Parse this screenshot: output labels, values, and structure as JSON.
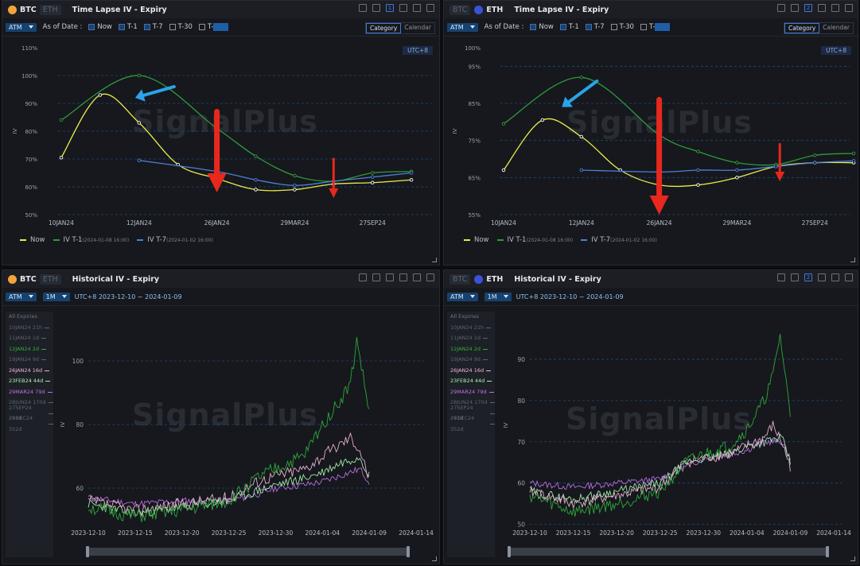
{
  "common": {
    "ticker_btc": "BTC",
    "ticker_eth": "ETH",
    "atm": "ATM",
    "as_of_date": "As of Date :",
    "now": "Now",
    "t1": "T-1",
    "t7": "T-7",
    "t30": "T-30",
    "tprefix": "T-",
    "category": "Category",
    "calendar": "Calendar",
    "utc": "UTC+8",
    "watermark": "SignalPlus",
    "period": "1M",
    "date_range": "UTC+8 2023-12-10 ~ 2024-01-09",
    "legend_now": "Now",
    "legend_t1": "IV T-1",
    "legend_t1_date": "(2024-01-08 16:00)",
    "legend_t7": "IV T-7",
    "legend_t7_date": "(2024-01-02 16:00)",
    "colors": {
      "now": "#e8ec4a",
      "t1": "#2f9a3a",
      "t7": "#4f7fd8",
      "arrow_red": "#e8281c",
      "arrow_blue": "#2aa3ea"
    }
  },
  "panels": {
    "tl_btc": {
      "title": "Time Lapse IV - Expiry",
      "page": "1"
    },
    "tl_eth": {
      "title": "Time Lapse IV - Expiry",
      "page": "2"
    },
    "hi_btc": {
      "title": "Historical IV - Expiry"
    },
    "hi_eth": {
      "title": "Historical IV - Expiry",
      "page": "2"
    }
  },
  "expiries_btc": [
    {
      "label": "All Expiries",
      "color": "#6e7480"
    },
    {
      "label": "10JAN24 21h",
      "color": "#5d636f"
    },
    {
      "label": "11JAN24 1d",
      "color": "#5d636f"
    },
    {
      "label": "12JAN24 2d",
      "color": "#2fae3c"
    },
    {
      "label": "19JAN24 9d",
      "color": "#5d636f"
    },
    {
      "label": "26JAN24 16d",
      "color": "#f0b6d8"
    },
    {
      "label": "23FEB24 44d",
      "color": "#a8f0b0"
    },
    {
      "label": "29MAR24 79d",
      "color": "#c070e8"
    },
    {
      "label": "28JUN24 170d",
      "color": "#5d636f"
    },
    {
      "label": "27SEP24 261d",
      "color": "#5d636f"
    },
    {
      "label": "27DEC24 352d",
      "color": "#5d636f"
    }
  ],
  "expiries_eth": [
    {
      "label": "All Expiries",
      "color": "#6e7480"
    },
    {
      "label": "10JAN24 21h",
      "color": "#5d636f"
    },
    {
      "label": "11JAN24 1d",
      "color": "#5d636f"
    },
    {
      "label": "12JAN24 2d",
      "color": "#2fae3c"
    },
    {
      "label": "19JAN24 9d",
      "color": "#5d636f"
    },
    {
      "label": "26JAN24 16d",
      "color": "#f0b6d8"
    },
    {
      "label": "23FEB24 44d",
      "color": "#a8f0b0"
    },
    {
      "label": "29MAR24 79d",
      "color": "#c070e8"
    },
    {
      "label": "28JUN24 170d",
      "color": "#5d636f"
    },
    {
      "label": "27SEP24 261d",
      "color": "#5d636f"
    },
    {
      "label": "27DEC24 352d",
      "color": "#5d636f"
    }
  ],
  "chart_data": [
    {
      "id": "tl_btc",
      "type": "line",
      "ylabel": "IV",
      "x_tick_labels": [
        "10JAN24",
        "12JAN24",
        "26JAN24",
        "29MAR24",
        "27SEP24"
      ],
      "y_ticks": [
        "110%",
        "100%",
        "90%",
        "80%",
        "70%",
        "60%",
        "50%"
      ],
      "ylim": [
        50,
        110
      ],
      "series": [
        {
          "name": "Now",
          "x": [
            0,
            1,
            2,
            3,
            4,
            5,
            6,
            7,
            8,
            9
          ],
          "values": [
            70.5,
            93,
            83,
            68,
            63,
            59,
            59,
            61,
            61.5,
            62.5
          ]
        },
        {
          "name": "IV T-1",
          "x": [
            0,
            2,
            4,
            5,
            6,
            7,
            8,
            9
          ],
          "values": [
            84,
            100,
            81,
            71,
            64,
            62,
            65,
            65.5
          ]
        },
        {
          "name": "IV T-7",
          "x": [
            2,
            4,
            5,
            6,
            7,
            8,
            9
          ],
          "values": [
            69.5,
            65.5,
            62.5,
            60.5,
            62,
            63.5,
            65
          ]
        }
      ],
      "arrows": [
        {
          "color": "red",
          "from": [
            4.0,
            87
          ],
          "to": [
            4.0,
            58
          ]
        },
        {
          "color": "red",
          "from": [
            7.0,
            70
          ],
          "to": [
            7.0,
            56
          ]
        },
        {
          "color": "blue",
          "from": [
            2.9,
            96
          ],
          "to": [
            1.9,
            92
          ]
        }
      ]
    },
    {
      "id": "tl_eth",
      "type": "line",
      "ylabel": "IV",
      "x_tick_labels": [
        "10JAN24",
        "12JAN24",
        "26JAN24",
        "29MAR24",
        "27SEP24"
      ],
      "y_ticks": [
        "100%",
        "95%",
        "85%",
        "75%",
        "65%",
        "55%"
      ],
      "ylim": [
        55,
        100
      ],
      "series": [
        {
          "name": "Now",
          "x": [
            0,
            1,
            2,
            3,
            4,
            5,
            6,
            7,
            8,
            9
          ],
          "values": [
            67,
            80.5,
            76,
            67,
            63,
            63,
            65,
            68,
            69,
            69
          ]
        },
        {
          "name": "IV T-1",
          "x": [
            0,
            2,
            4,
            5,
            6,
            7,
            8,
            9
          ],
          "values": [
            79.5,
            92,
            76.5,
            72,
            69,
            68.5,
            71,
            71.5
          ]
        },
        {
          "name": "IV T-7",
          "x": [
            2,
            4,
            5,
            6,
            7,
            8,
            9
          ],
          "values": [
            67,
            66.5,
            67,
            67,
            68,
            69,
            69.5
          ]
        }
      ],
      "arrows": [
        {
          "color": "red",
          "from": [
            4.0,
            86
          ],
          "to": [
            4.0,
            55
          ]
        },
        {
          "color": "red",
          "from": [
            7.1,
            74
          ],
          "to": [
            7.1,
            64
          ]
        },
        {
          "color": "blue",
          "from": [
            2.4,
            91
          ],
          "to": [
            1.5,
            84
          ]
        }
      ]
    },
    {
      "id": "hi_btc",
      "type": "line",
      "ylabel": "IV",
      "x_tick_labels": [
        "2023-12-10",
        "2023-12-15",
        "2023-12-20",
        "2023-12-25",
        "2023-12-30",
        "2024-01-04",
        "2024-01-09",
        "2024-01-14"
      ],
      "y_ticks": [
        "100",
        "80",
        "60"
      ],
      "ylim": [
        46,
        114
      ],
      "xlim_days": [
        0,
        35
      ]
    },
    {
      "id": "hi_eth",
      "type": "line",
      "ylabel": "IV",
      "x_tick_labels": [
        "2023-12-10",
        "2023-12-15",
        "2023-12-20",
        "2023-12-25",
        "2023-12-30",
        "2024-01-04",
        "2024-01-09",
        "2024-01-14"
      ],
      "y_ticks": [
        "90",
        "80",
        "70",
        "60",
        "50"
      ],
      "ylim": [
        48,
        100
      ],
      "xlim_days": [
        0,
        35
      ]
    }
  ]
}
